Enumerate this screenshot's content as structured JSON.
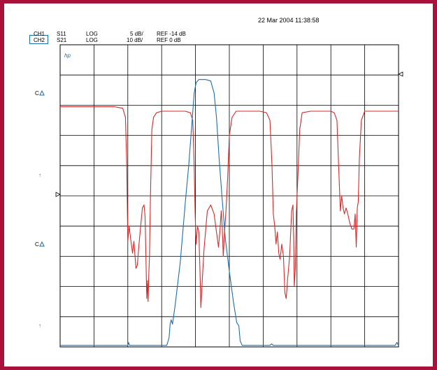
{
  "timestamp": "22 Mar 2004  11:38:58",
  "channels": [
    {
      "id": "CH1",
      "param": "S11",
      "format": "LOG",
      "scale": "5 dB/",
      "ref": "REF -14 dB",
      "color": "#d42a2a"
    },
    {
      "id": "CH2",
      "param": "S21",
      "format": "LOG",
      "scale": "10 dB/",
      "ref": "REF 0 dB",
      "color": "#1a6fb0"
    }
  ],
  "markers": {
    "hp": "hp",
    "c1": "C",
    "c2": "C",
    "arrow1": "↑",
    "arrow2": "↑"
  },
  "colors": {
    "frame": "#a8123a",
    "grid": "#000000",
    "s11": "#d42a2a",
    "s21": "#1a6fb0"
  },
  "chart_data": {
    "type": "line",
    "grid": true,
    "x_divisions": 10,
    "y_divisions": 10,
    "series": [
      {
        "name": "S11",
        "color": "#d42a2a",
        "points": [
          [
            0,
            7.95
          ],
          [
            0.5,
            7.95
          ],
          [
            1.0,
            7.95
          ],
          [
            1.6,
            7.95
          ],
          [
            1.85,
            7.9
          ],
          [
            1.93,
            7.6
          ],
          [
            1.97,
            6
          ],
          [
            2.0,
            3.5
          ],
          [
            2.04,
            4.0
          ],
          [
            2.08,
            3.6
          ],
          [
            2.14,
            3.1
          ],
          [
            2.18,
            3.5
          ],
          [
            2.24,
            2.6
          ],
          [
            2.28,
            2.7
          ],
          [
            2.33,
            3.4
          ],
          [
            2.38,
            4.0
          ],
          [
            2.43,
            4.6
          ],
          [
            2.48,
            4.7
          ],
          [
            2.51,
            4.3
          ],
          [
            2.53,
            3.2
          ],
          [
            2.56,
            1.6
          ],
          [
            2.58,
            2.2
          ],
          [
            2.6,
            1.5
          ],
          [
            2.62,
            2.4
          ],
          [
            2.64,
            3.0
          ],
          [
            2.67,
            5.0
          ],
          [
            2.71,
            7.2
          ],
          [
            2.76,
            7.6
          ],
          [
            2.85,
            7.75
          ],
          [
            3.0,
            7.8
          ],
          [
            3.3,
            7.8
          ],
          [
            3.7,
            7.8
          ],
          [
            3.85,
            7.75
          ],
          [
            3.92,
            7.5
          ],
          [
            3.96,
            6
          ],
          [
            3.99,
            4.4
          ],
          [
            4.02,
            3.4
          ],
          [
            4.06,
            4.0
          ],
          [
            4.1,
            3.8
          ],
          [
            4.13,
            2.6
          ],
          [
            4.16,
            1.3
          ],
          [
            4.2,
            2.2
          ],
          [
            4.25,
            3.2
          ],
          [
            4.35,
            4.5
          ],
          [
            4.45,
            4.7
          ],
          [
            4.55,
            4.4
          ],
          [
            4.62,
            3.8
          ],
          [
            4.68,
            3.3
          ],
          [
            4.72,
            3.8
          ],
          [
            4.76,
            4.5
          ],
          [
            4.79,
            4.0
          ],
          [
            4.82,
            3.0
          ],
          [
            4.86,
            3.8
          ],
          [
            4.9,
            4.5
          ],
          [
            4.95,
            5.6
          ],
          [
            5.0,
            7.0
          ],
          [
            5.08,
            7.6
          ],
          [
            5.2,
            7.8
          ],
          [
            5.5,
            7.8
          ],
          [
            5.9,
            7.8
          ],
          [
            6.1,
            7.75
          ],
          [
            6.2,
            7.5
          ],
          [
            6.26,
            6.0
          ],
          [
            6.3,
            4.4
          ],
          [
            6.34,
            4.0
          ],
          [
            6.38,
            3.4
          ],
          [
            6.42,
            3.8
          ],
          [
            6.46,
            3.1
          ],
          [
            6.5,
            2.9
          ],
          [
            6.55,
            3.4
          ],
          [
            6.6,
            3.0
          ],
          [
            6.64,
            1.8
          ],
          [
            6.68,
            1.6
          ],
          [
            6.72,
            2.2
          ],
          [
            6.78,
            3.0
          ],
          [
            6.84,
            4.5
          ],
          [
            6.88,
            4.7
          ],
          [
            6.9,
            3.6
          ],
          [
            6.92,
            2.0
          ],
          [
            6.95,
            2.6
          ],
          [
            6.98,
            4.4
          ],
          [
            7.02,
            5.5
          ],
          [
            7.08,
            7.2
          ],
          [
            7.15,
            7.75
          ],
          [
            7.4,
            7.8
          ],
          [
            8.0,
            7.8
          ],
          [
            8.1,
            7.75
          ],
          [
            8.18,
            7.5
          ],
          [
            8.23,
            6.0
          ],
          [
            8.28,
            4.5
          ],
          [
            8.32,
            5.0
          ],
          [
            8.36,
            4.6
          ],
          [
            8.4,
            4.4
          ],
          [
            8.45,
            4.6
          ],
          [
            8.5,
            4.4
          ],
          [
            8.56,
            4.1
          ],
          [
            8.62,
            3.9
          ],
          [
            8.68,
            3.9
          ],
          [
            8.72,
            4.4
          ],
          [
            8.75,
            3.3
          ],
          [
            8.78,
            4.6
          ],
          [
            8.81,
            4.8
          ],
          [
            8.84,
            6.2
          ],
          [
            8.9,
            7.5
          ],
          [
            9.0,
            7.8
          ],
          [
            9.3,
            7.8
          ],
          [
            10,
            7.8
          ]
        ]
      },
      {
        "name": "S21",
        "color": "#1a6fb0",
        "points": [
          [
            0,
            0.05
          ],
          [
            1.0,
            0.05
          ],
          [
            2.0,
            0.05
          ],
          [
            2.02,
            0.15
          ],
          [
            2.05,
            0.05
          ],
          [
            3.0,
            0.05
          ],
          [
            3.15,
            0.05
          ],
          [
            3.22,
            0.3
          ],
          [
            3.25,
            0.75
          ],
          [
            3.28,
            0.9
          ],
          [
            3.32,
            0.75
          ],
          [
            3.4,
            1.4
          ],
          [
            3.55,
            2.8
          ],
          [
            3.7,
            4.8
          ],
          [
            3.8,
            6.0
          ],
          [
            3.9,
            7.5
          ],
          [
            3.96,
            8.4
          ],
          [
            4.02,
            8.75
          ],
          [
            4.1,
            8.85
          ],
          [
            4.3,
            8.85
          ],
          [
            4.45,
            8.8
          ],
          [
            4.55,
            8.4
          ],
          [
            4.62,
            7.6
          ],
          [
            4.7,
            6.2
          ],
          [
            4.78,
            5.0
          ],
          [
            4.88,
            3.6
          ],
          [
            5.0,
            2.5
          ],
          [
            5.12,
            1.5
          ],
          [
            5.22,
            0.8
          ],
          [
            5.28,
            0.7
          ],
          [
            5.32,
            0.2
          ],
          [
            5.38,
            0.05
          ],
          [
            5.7,
            0.05
          ],
          [
            6.2,
            0.05
          ],
          [
            6.25,
            0.1
          ],
          [
            6.3,
            0.05
          ],
          [
            7.0,
            0.05
          ],
          [
            8.0,
            0.05
          ],
          [
            9.0,
            0.05
          ],
          [
            9.9,
            0.05
          ],
          [
            9.95,
            0.15
          ],
          [
            10,
            0.05
          ]
        ]
      }
    ]
  }
}
